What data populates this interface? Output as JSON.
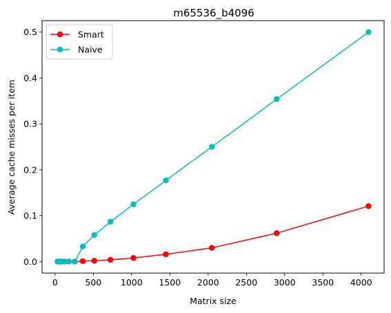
{
  "chart_data": {
    "type": "line",
    "title": "m65536_b4096",
    "xlabel": "Matrix size",
    "ylabel": "Average cache misses per item",
    "xlim": [
      -170,
      4300
    ],
    "ylim": [
      -0.025,
      0.525
    ],
    "x_ticks": [
      0,
      500,
      1000,
      1500,
      2000,
      2500,
      3000,
      3500,
      4000
    ],
    "y_ticks": [
      0.0,
      0.1,
      0.2,
      0.3,
      0.4,
      0.5
    ],
    "y_tick_labels": [
      "0.0",
      "0.1",
      "0.2",
      "0.3",
      "0.4",
      "0.5"
    ],
    "grid": false,
    "legend_position": "top-left",
    "series": [
      {
        "name": "Smart",
        "color": "#ff0000",
        "marker": "circle",
        "x": [
          32,
          45,
          64,
          90,
          128,
          181,
          256,
          362,
          512,
          724,
          1024,
          1448,
          2048,
          2896,
          4096
        ],
        "y": [
          0.0,
          0.0,
          0.0,
          0.0,
          0.0,
          0.0,
          0.0,
          0.001,
          0.002,
          0.004,
          0.008,
          0.016,
          0.03,
          0.062,
          0.121
        ]
      },
      {
        "name": "Naive",
        "color": "#00bfbf",
        "marker": "circle",
        "x": [
          32,
          45,
          64,
          90,
          128,
          181,
          256,
          362,
          512,
          724,
          1024,
          1448,
          2048,
          2896,
          4096
        ],
        "y": [
          0.0,
          0.0,
          0.0,
          0.0,
          0.0,
          0.0,
          0.0,
          0.033,
          0.058,
          0.087,
          0.125,
          0.177,
          0.25,
          0.354,
          0.5
        ]
      }
    ]
  }
}
